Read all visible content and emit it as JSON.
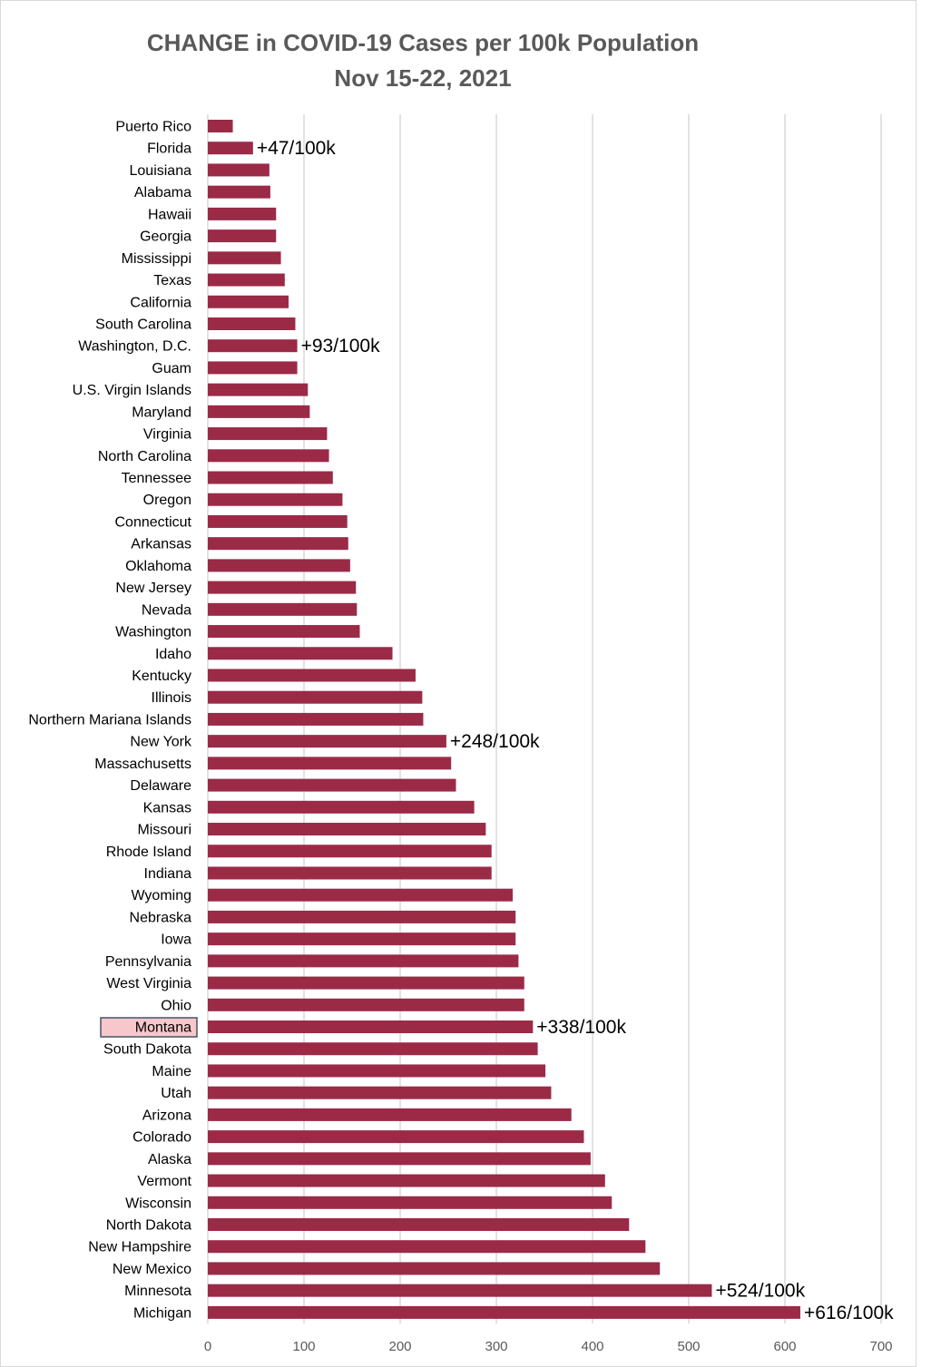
{
  "colors": {
    "bar": "#9b2a47",
    "grid": "#d9d9d9",
    "highlight_fill": "#f8c7cc",
    "highlight_border": "#44546a"
  },
  "chart_data": {
    "type": "bar",
    "orientation": "horizontal",
    "title": "CHANGE in COVID-19 Cases per 100k Population",
    "subtitle": "Nov 15-22, 2021",
    "xlabel": "",
    "ylabel": "",
    "xlim": [
      0,
      700
    ],
    "xticks": [
      0,
      100,
      200,
      300,
      400,
      500,
      600,
      700
    ],
    "grid": true,
    "highlighted_category": "Montana",
    "categories": [
      "Puerto Rico",
      "Florida",
      "Louisiana",
      "Alabama",
      "Hawaii",
      "Georgia",
      "Mississippi",
      "Texas",
      "California",
      "South Carolina",
      "Washington, D.C.",
      "Guam",
      "U.S. Virgin Islands",
      "Maryland",
      "Virginia",
      "North Carolina",
      "Tennessee",
      "Oregon",
      "Connecticut",
      "Arkansas",
      "Oklahoma",
      "New Jersey",
      "Nevada",
      "Washington",
      "Idaho",
      "Kentucky",
      "Illinois",
      "Northern Mariana Islands",
      "New York",
      "Massachusetts",
      "Delaware",
      "Kansas",
      "Missouri",
      "Rhode Island",
      "Indiana",
      "Wyoming",
      "Nebraska",
      "Iowa",
      "Pennsylvania",
      "West Virginia",
      "Ohio",
      "Montana",
      "South Dakota",
      "Maine",
      "Utah",
      "Arizona",
      "Colorado",
      "Alaska",
      "Vermont",
      "Wisconsin",
      "North Dakota",
      "New Hampshire",
      "New Mexico",
      "Minnesota",
      "Michigan"
    ],
    "values": [
      26,
      47,
      64,
      65,
      71,
      71,
      76,
      80,
      84,
      91,
      93,
      93,
      104,
      106,
      124,
      126,
      130,
      140,
      145,
      146,
      148,
      154,
      155,
      158,
      192,
      216,
      223,
      224,
      248,
      253,
      258,
      277,
      289,
      295,
      295,
      317,
      320,
      320,
      323,
      329,
      329,
      338,
      343,
      351,
      357,
      378,
      391,
      398,
      413,
      420,
      438,
      455,
      470,
      524,
      616
    ],
    "annotations": [
      {
        "category": "Florida",
        "text": "+47/100k"
      },
      {
        "category": "Washington, D.C.",
        "text": "+93/100k"
      },
      {
        "category": "New York",
        "text": "+248/100k"
      },
      {
        "category": "Montana",
        "text": "+338/100k"
      },
      {
        "category": "Minnesota",
        "text": "+524/100k"
      },
      {
        "category": "Michigan",
        "text": "+616/100k"
      }
    ]
  }
}
